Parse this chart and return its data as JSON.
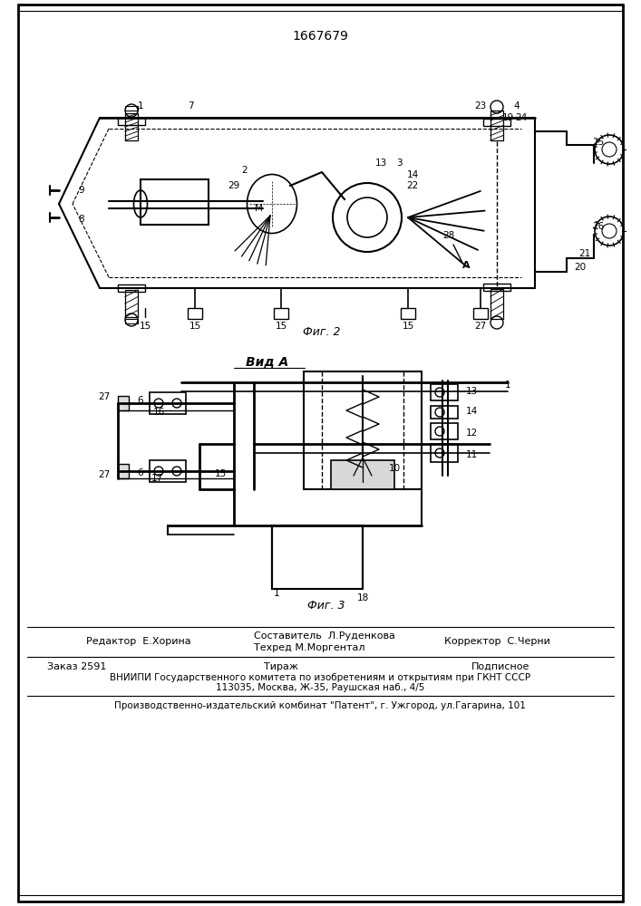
{
  "patent_number": "1667679",
  "background_color": "#ffffff",
  "line_color": "#000000",
  "fig_width": 7.07,
  "fig_height": 10.0,
  "footer": {
    "editor": "Редактор  Е.Хорина",
    "composer_label": "Составитель  Л.Руденкова",
    "techred_label": "Техред М.Моргентал",
    "corrector_label": "Корректор  С.Черни",
    "order": "Заказ 2591",
    "tirazh": "Тираж",
    "podpisnoe": "Подписное",
    "vniipи_line": "ВНИИПИ Государственного комитета по изобретениям и открытиям при ГКНТ СССР",
    "address_line": "113035, Москва, Ж-35, Раушская наб., 4/5",
    "bottom_line": "Производственно-издательский комбинат \"Патент\", г. Ужгород, ул.Гагарина, 101"
  },
  "fig2_label": "Фиг. 2",
  "fig3_label": "Фиг. 3",
  "vidA_label": "Вид А"
}
